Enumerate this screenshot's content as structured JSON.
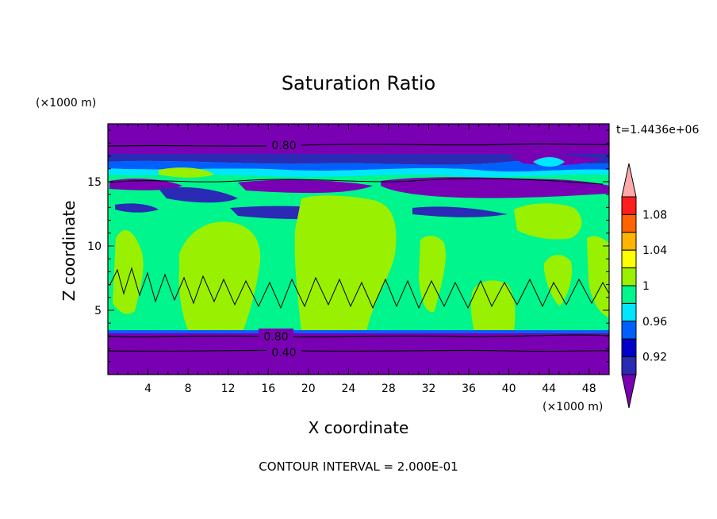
{
  "chart_data": {
    "type": "heatmap",
    "title": "Saturation Ratio",
    "xlabel": "X coordinate",
    "ylabel": "Z coordinate",
    "x_unit": "(×1000 m)",
    "y_unit": "(×1000 m)",
    "time_label": "t=1.4436e+06",
    "footer": "CONTOUR INTERVAL = 2.000E-01",
    "xlim": [
      0,
      50
    ],
    "ylim": [
      0,
      19.5
    ],
    "x_ticks": [
      "4",
      "8",
      "12",
      "16",
      "20",
      "24",
      "28",
      "32",
      "36",
      "40",
      "44",
      "48"
    ],
    "y_ticks": [
      "5",
      "10",
      "15"
    ],
    "colorbar": {
      "labels": [
        "1.08",
        "1.04",
        "1",
        "0.96",
        "0.92"
      ],
      "levels": [
        0.92,
        0.94,
        0.96,
        0.98,
        1.0,
        1.02,
        1.04,
        1.06,
        1.08,
        1.1
      ],
      "colors": [
        "#7a00b4",
        "#2a2ab4",
        "#0000c8",
        "#0060ff",
        "#00e6ff",
        "#00f58c",
        "#99f000",
        "#ffff00",
        "#ffb400",
        "#ff6400",
        "#ff1e1e",
        "#ffaaaa"
      ]
    },
    "contour_labels": [
      "0.80",
      "0.80",
      "0.40"
    ],
    "bands": [
      {
        "z": [
          0,
          3.5
        ],
        "value": "< 0.92"
      },
      {
        "z": [
          3.5,
          16.5
        ],
        "value": "0.98–1.02"
      },
      {
        "z": [
          16.5,
          17.3
        ],
        "value": "0.94–0.98"
      },
      {
        "z": [
          17.3,
          19.5
        ],
        "value": "< 0.92"
      }
    ]
  }
}
